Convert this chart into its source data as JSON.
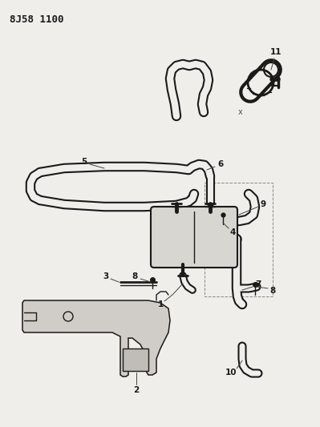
{
  "title": "8J58 1100",
  "bg_color": "#f0eeea",
  "line_color": "#1a1a1a",
  "title_fontsize": 9,
  "label_fontsize": 7.5,
  "lw_tube": 1.3,
  "lw_line": 1.0
}
